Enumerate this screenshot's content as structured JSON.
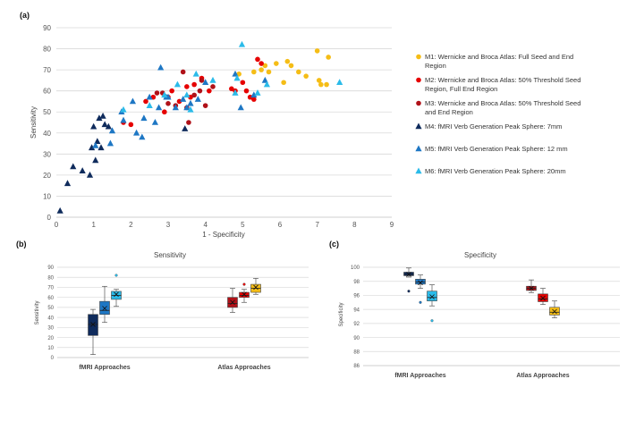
{
  "panels": {
    "a": "(a)",
    "b": "(b)",
    "c": "(c)"
  },
  "colors": {
    "m1": "#f5bd16",
    "m2": "#e60000",
    "m3": "#b01118",
    "m4": "#0f2b5c",
    "m5": "#1e77c4",
    "m6": "#2bbbe9",
    "grid": "#d9d9d9",
    "axis": "#bfbfbf"
  },
  "chart_data": [
    {
      "type": "scatter",
      "xlabel": "1 - Specificity",
      "ylabel": "Sensitivity",
      "xlim": [
        0,
        9
      ],
      "ylim": [
        0,
        90
      ],
      "xticks": [
        "0",
        "1",
        "2",
        "3",
        "4",
        "5",
        "6",
        "7",
        "8",
        "9"
      ],
      "yticks": [
        "0",
        "10",
        "20",
        "30",
        "40",
        "50",
        "60",
        "70",
        "80",
        "90"
      ],
      "grid": true,
      "legend_position": "right",
      "series": [
        {
          "key": "m1",
          "name": "M1: Wernicke and Broca Atlas: Full Seed and End",
          "name_line2": "Region",
          "marker": "circle",
          "points": [
            [
              4.9,
              68
            ],
            [
              5.3,
              69
            ],
            [
              5.5,
              70
            ],
            [
              5.6,
              72
            ],
            [
              5.7,
              69
            ],
            [
              5.9,
              73
            ],
            [
              6.1,
              64
            ],
            [
              6.2,
              74
            ],
            [
              6.3,
              72
            ],
            [
              6.5,
              69
            ],
            [
              6.7,
              67
            ],
            [
              7.0,
              79
            ],
            [
              7.05,
              65
            ],
            [
              7.1,
              63
            ],
            [
              7.3,
              76
            ],
            [
              7.25,
              63
            ]
          ]
        },
        {
          "key": "m2",
          "name": "M2: Wernicke and Broca Atlas: 50% Threshold Seed",
          "name_line2": "Region, Full End Region",
          "marker": "circle",
          "points": [
            [
              1.8,
              45
            ],
            [
              2.0,
              44
            ],
            [
              2.4,
              55
            ],
            [
              2.6,
              57
            ],
            [
              2.9,
              50
            ],
            [
              3.0,
              57
            ],
            [
              3.1,
              60
            ],
            [
              3.3,
              55
            ],
            [
              3.5,
              62
            ],
            [
              3.6,
              57
            ],
            [
              3.7,
              63
            ],
            [
              3.9,
              66
            ],
            [
              4.1,
              60
            ],
            [
              4.7,
              61
            ],
            [
              4.8,
              60
            ],
            [
              5.0,
              64
            ],
            [
              5.1,
              60
            ],
            [
              5.2,
              57
            ],
            [
              5.3,
              56
            ],
            [
              5.4,
              75
            ],
            [
              5.5,
              73
            ]
          ]
        },
        {
          "key": "m3",
          "name": "M3: Wernicke and Broca Atlas:  50% Threshold Seed",
          "name_line2": "and End Region",
          "marker": "circle",
          "points": [
            [
              2.7,
              59
            ],
            [
              2.85,
              59
            ],
            [
              3.0,
              54
            ],
            [
              3.2,
              53
            ],
            [
              3.4,
              69
            ],
            [
              3.5,
              52
            ],
            [
              3.55,
              45
            ],
            [
              3.7,
              58
            ],
            [
              3.9,
              65
            ],
            [
              4.0,
              53
            ],
            [
              4.2,
              62
            ],
            [
              3.85,
              60
            ]
          ]
        },
        {
          "key": "m4",
          "name": "M4: fMRI Verb Generation Peak Sphere: 7mm",
          "marker": "triangle",
          "points": [
            [
              0.1,
              3
            ],
            [
              0.3,
              16
            ],
            [
              0.45,
              24
            ],
            [
              0.7,
              22
            ],
            [
              0.9,
              20
            ],
            [
              0.95,
              33
            ],
            [
              1.0,
              43
            ],
            [
              1.05,
              27
            ],
            [
              1.1,
              36
            ],
            [
              1.15,
              47
            ],
            [
              1.2,
              33
            ],
            [
              1.25,
              48
            ],
            [
              1.3,
              44
            ],
            [
              1.4,
              43
            ],
            [
              3.45,
              42
            ]
          ]
        },
        {
          "key": "m5",
          "name": "M5: fMRI Verb Generation Peak Sphere: 12 mm",
          "marker": "triangle",
          "points": [
            [
              1.05,
              34
            ],
            [
              1.45,
              35
            ],
            [
              1.5,
              41
            ],
            [
              1.75,
              50
            ],
            [
              1.8,
              46
            ],
            [
              2.05,
              55
            ],
            [
              2.15,
              40
            ],
            [
              2.3,
              38
            ],
            [
              2.35,
              47
            ],
            [
              2.5,
              57
            ],
            [
              2.65,
              45
            ],
            [
              2.75,
              52
            ],
            [
              2.8,
              71
            ],
            [
              2.95,
              57
            ],
            [
              3.0,
              57
            ],
            [
              3.2,
              52
            ],
            [
              3.4,
              56
            ],
            [
              3.5,
              52
            ],
            [
              3.6,
              54
            ],
            [
              3.8,
              56
            ],
            [
              4.0,
              64
            ],
            [
              4.8,
              68
            ],
            [
              4.95,
              52
            ],
            [
              5.3,
              58
            ],
            [
              5.6,
              65
            ]
          ]
        },
        {
          "key": "m6",
          "name": "M6: fMRI Verb Generation Peak Sphere: 20mm",
          "marker": "triangle",
          "points": [
            [
              1.8,
              51
            ],
            [
              2.5,
              53
            ],
            [
              2.9,
              58
            ],
            [
              3.25,
              63
            ],
            [
              3.5,
              58
            ],
            [
              3.6,
              51
            ],
            [
              3.75,
              68
            ],
            [
              4.2,
              65
            ],
            [
              4.8,
              59
            ],
            [
              4.85,
              66
            ],
            [
              4.98,
              82
            ],
            [
              5.4,
              59
            ],
            [
              5.65,
              63
            ],
            [
              7.6,
              64
            ]
          ]
        }
      ]
    },
    {
      "type": "box",
      "title": "Sensitivity",
      "ylabel": "Sensitivity",
      "ylim": [
        0,
        90
      ],
      "yticks": [
        "0",
        "10",
        "20",
        "30",
        "40",
        "50",
        "60",
        "70",
        "80",
        "90"
      ],
      "categories": [
        "fMRI Approaches",
        "Atlas Approaches"
      ],
      "boxes": [
        {
          "key": "m4",
          "group": 0,
          "min": 3,
          "q1": 22,
          "median": 33,
          "mean": 33,
          "q3": 43,
          "max": 48,
          "outliers": []
        },
        {
          "key": "m5",
          "group": 0,
          "min": 35,
          "q1": 43,
          "median": 47,
          "mean": 49,
          "q3": 56,
          "max": 71,
          "outliers": []
        },
        {
          "key": "m6",
          "group": 0,
          "min": 51,
          "q1": 58,
          "median": 62,
          "mean": 63,
          "q3": 66,
          "max": 68,
          "outliers": [
            82
          ]
        },
        {
          "key": "m3",
          "group": 1,
          "min": 45,
          "q1": 50,
          "median": 54,
          "mean": 55,
          "q3": 60,
          "max": 69,
          "outliers": []
        },
        {
          "key": "m2",
          "group": 1,
          "min": 55,
          "q1": 60,
          "median": 62,
          "mean": 63,
          "q3": 65,
          "max": 68,
          "outliers": [
            73
          ]
        },
        {
          "key": "m1",
          "group": 1,
          "min": 63,
          "q1": 65,
          "median": 69,
          "mean": 70,
          "q3": 73,
          "max": 79,
          "outliers": []
        }
      ]
    },
    {
      "type": "box",
      "title": "Specificity",
      "ylabel": "Specificity",
      "ylim": [
        86,
        100
      ],
      "yticks": [
        "86",
        "88",
        "90",
        "92",
        "94",
        "96",
        "98",
        "100"
      ],
      "categories": [
        "fMRI Approaches",
        "Atlas Approaches"
      ],
      "boxes": [
        {
          "key": "m4",
          "group": 0,
          "min": 98.6,
          "q1": 98.8,
          "median": 99.0,
          "mean": 99.0,
          "q3": 99.3,
          "max": 99.9,
          "outliers": [
            96.6
          ]
        },
        {
          "key": "m5",
          "group": 0,
          "min": 97.0,
          "q1": 97.6,
          "median": 97.9,
          "mean": 97.8,
          "q3": 98.3,
          "max": 98.9,
          "outliers": [
            95.0
          ]
        },
        {
          "key": "m6",
          "group": 0,
          "min": 94.5,
          "q1": 95.2,
          "median": 95.7,
          "mean": 95.8,
          "q3": 96.6,
          "max": 97.5,
          "outliers": [
            92.4
          ]
        },
        {
          "key": "m3",
          "group": 1,
          "min": 96.4,
          "q1": 96.7,
          "median": 97.0,
          "mean": 97.0,
          "q3": 97.3,
          "max": 98.2,
          "outliers": []
        },
        {
          "key": "m2",
          "group": 1,
          "min": 94.7,
          "q1": 95.1,
          "median": 95.5,
          "mean": 95.6,
          "q3": 96.2,
          "max": 97.0,
          "outliers": []
        },
        {
          "key": "m1",
          "group": 1,
          "min": 92.8,
          "q1": 93.2,
          "median": 93.6,
          "mean": 93.7,
          "q3": 94.3,
          "max": 95.2,
          "outliers": []
        }
      ]
    }
  ]
}
